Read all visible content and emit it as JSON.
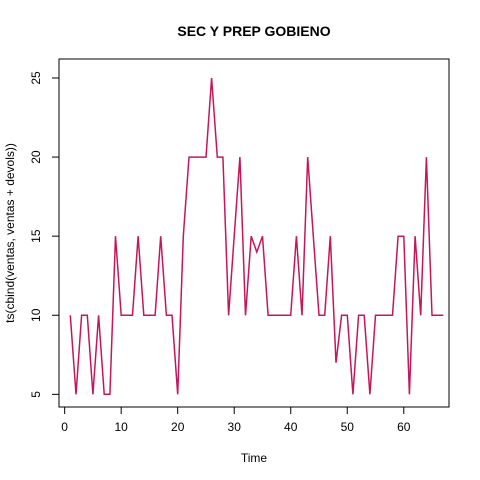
{
  "chart_data": {
    "type": "line",
    "title": "SEC Y PREP GOBIENO",
    "xlabel": "Time",
    "ylabel": "ts(cbind(ventas, ventas + devols))",
    "xlim": [
      -1,
      68
    ],
    "ylim": [
      4.2,
      26.2
    ],
    "x_ticks": [
      0,
      10,
      20,
      30,
      40,
      50,
      60
    ],
    "y_ticks": [
      5,
      10,
      15,
      20,
      25
    ],
    "grid": false,
    "line_color": "#c2185b",
    "series": [
      {
        "x_start": 1,
        "values": [
          10,
          5,
          10,
          10,
          5,
          10,
          5,
          5,
          15,
          10,
          10,
          10,
          15,
          10,
          10,
          10,
          15,
          10,
          10,
          5,
          15,
          20,
          20,
          20,
          20,
          25,
          20,
          20,
          10,
          15,
          20,
          10,
          15,
          14,
          15,
          10,
          10,
          10,
          10,
          10,
          15,
          10,
          20,
          15,
          10,
          10,
          15,
          7,
          10,
          10,
          5,
          10,
          10,
          5,
          10,
          10,
          10,
          10,
          15,
          15,
          5,
          15,
          10,
          20,
          10,
          10,
          10
        ]
      }
    ]
  }
}
